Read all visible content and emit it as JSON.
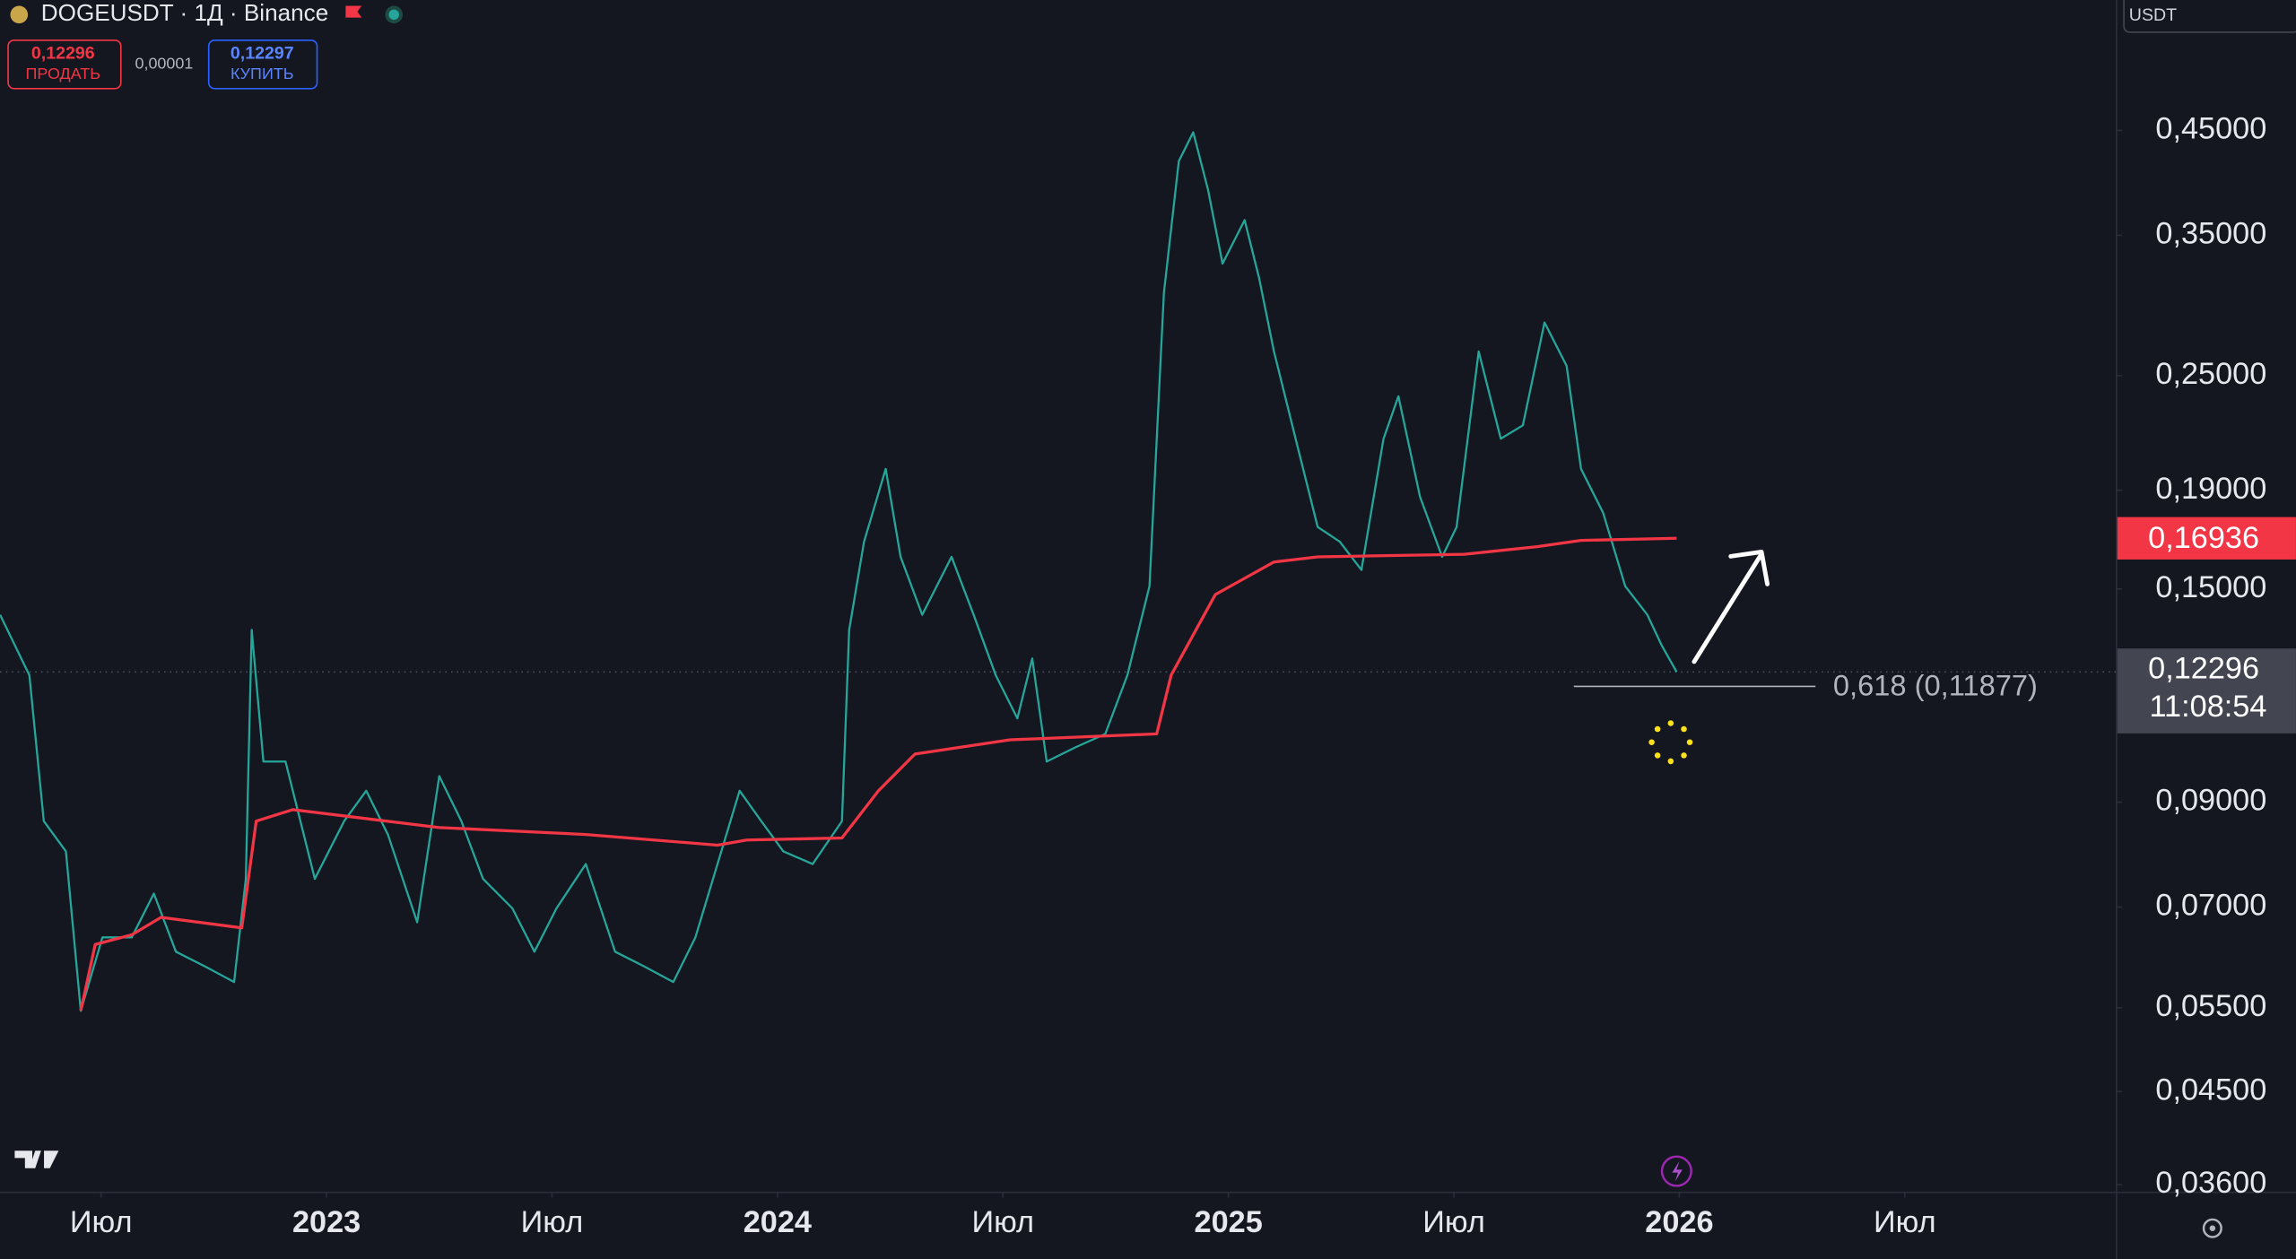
{
  "header": {
    "symbol": "DOGEUSDT · 1Д · Binance",
    "sell_price": "0,12296",
    "sell_label": "ПРОДАТЬ",
    "spread": "0,00001",
    "buy_price": "0,12297",
    "buy_label": "КУПИТЬ",
    "currency": "USDT"
  },
  "chart_data": {
    "type": "line",
    "log_scale": true,
    "grid": false,
    "xlim": [
      2022.276,
      2026.968
    ],
    "xticks": [
      {
        "value": 2022.5,
        "label": "Июл"
      },
      2023,
      {
        "value": 2023.5,
        "label": "Июл"
      },
      2024,
      {
        "value": 2024.5,
        "label": "Июл"
      },
      2025,
      {
        "value": 2025.5,
        "label": "Июл"
      },
      2026,
      {
        "value": 2026.5,
        "label": "Июл"
      }
    ],
    "ylim": [
      0.0354,
      0.615
    ],
    "yticks": [
      {
        "value": 0.45,
        "label": "0,45000"
      },
      {
        "value": 0.35,
        "label": "0,35000"
      },
      {
        "value": 0.25,
        "label": "0,25000"
      },
      {
        "value": 0.19,
        "label": "0,19000"
      },
      {
        "value": 0.15,
        "label": "0,15000"
      },
      {
        "value": 0.09,
        "label": "0,09000"
      },
      {
        "value": 0.07,
        "label": "0,07000"
      },
      {
        "value": 0.055,
        "label": "0,05500"
      },
      {
        "value": 0.045,
        "label": "0,04500"
      },
      {
        "value": 0.036,
        "label": "0,03600"
      }
    ],
    "series": [
      {
        "name": "DOGEUSDT",
        "color": "#26a69a",
        "x": [
          2022.276,
          2022.341,
          2022.373,
          2022.422,
          2022.455,
          2022.503,
          2022.568,
          2022.617,
          2022.666,
          2022.731,
          2022.795,
          2022.821,
          2022.834,
          2022.86,
          2022.909,
          2022.974,
          2023.039,
          2023.088,
          2023.136,
          2023.201,
          2023.25,
          2023.299,
          2023.347,
          2023.412,
          2023.461,
          2023.51,
          2023.575,
          2023.64,
          2023.705,
          2023.769,
          2023.818,
          2023.867,
          2023.916,
          2023.964,
          2024.013,
          2024.078,
          2024.143,
          2024.159,
          2024.192,
          2024.24,
          2024.273,
          2024.321,
          2024.386,
          2024.435,
          2024.484,
          2024.532,
          2024.565,
          2024.597,
          2024.662,
          2024.727,
          2024.776,
          2024.825,
          2024.857,
          2024.89,
          2024.922,
          2024.955,
          2024.987,
          2025.036,
          2025.068,
          2025.101,
          2025.149,
          2025.198,
          2025.247,
          2025.295,
          2025.344,
          2025.377,
          2025.425,
          2025.474,
          2025.506,
          2025.555,
          2025.604,
          2025.653,
          2025.701,
          2025.75,
          2025.782,
          2025.831,
          2025.88,
          2025.929,
          2025.961,
          2025.994
        ],
        "values": [
          0.141,
          0.122,
          0.086,
          0.08,
          0.0546,
          0.0651,
          0.0651,
          0.0723,
          0.0629,
          0.0607,
          0.0585,
          0.0749,
          0.136,
          0.0992,
          0.0992,
          0.0749,
          0.086,
          0.0925,
          0.0833,
          0.0675,
          0.0958,
          0.086,
          0.0749,
          0.0698,
          0.0629,
          0.0698,
          0.0776,
          0.0629,
          0.0607,
          0.0585,
          0.0651,
          0.0776,
          0.0925,
          0.086,
          0.08,
          0.0776,
          0.086,
          0.136,
          0.168,
          0.2,
          0.162,
          0.141,
          0.162,
          0.141,
          0.122,
          0.11,
          0.127,
          0.0992,
          0.1027,
          0.106,
          0.122,
          0.151,
          0.305,
          0.418,
          0.448,
          0.39,
          0.327,
          0.363,
          0.316,
          0.265,
          0.215,
          0.174,
          0.168,
          0.157,
          0.215,
          0.238,
          0.187,
          0.162,
          0.174,
          0.265,
          0.215,
          0.222,
          0.284,
          0.256,
          0.2,
          0.18,
          0.151,
          0.141,
          0.131,
          0.12296
        ]
      },
      {
        "name": "MA",
        "color": "#f23645",
        "x": [
          2022.455,
          2022.487,
          2022.568,
          2022.633,
          2022.812,
          2022.844,
          2022.925,
          2023.25,
          2023.575,
          2023.867,
          2023.932,
          2024.143,
          2024.224,
          2024.305,
          2024.516,
          2024.841,
          2024.873,
          2024.971,
          2025.101,
          2025.198,
          2025.523,
          2025.685,
          2025.782,
          2025.994
        ],
        "values": [
          0.0546,
          0.064,
          0.0655,
          0.0683,
          0.0666,
          0.086,
          0.0884,
          0.0847,
          0.0833,
          0.0812,
          0.0822,
          0.0826,
          0.0925,
          0.101,
          0.1045,
          0.106,
          0.122,
          0.148,
          0.16,
          0.162,
          0.163,
          0.166,
          0.1685,
          0.16936
        ]
      }
    ],
    "ma_tag": {
      "value": 0.16936,
      "label": "0,16936"
    },
    "price_tag": {
      "value": 0.12296,
      "label": "0,12296",
      "countdown": "11:08:54"
    },
    "fib_level": {
      "value": 0.11877,
      "label": "0,618 (0,11877)",
      "x": [
        2025.766,
        2026.302
      ]
    }
  }
}
